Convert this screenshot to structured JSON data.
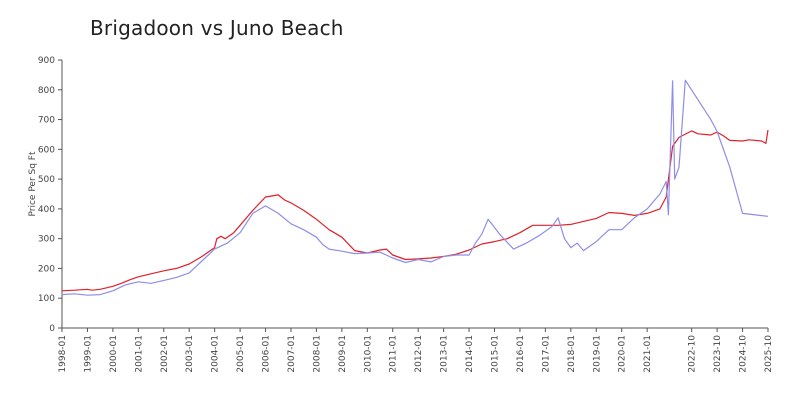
{
  "chart_data": {
    "type": "line",
    "title": "Brigadoon vs  Juno Beach",
    "ylabel": "Price Per Sq Ft",
    "xlabel": "",
    "ylim": [
      0,
      900
    ],
    "yticks": [
      0,
      100,
      200,
      300,
      400,
      500,
      600,
      700,
      800,
      900
    ],
    "xlim": [
      "1998-01",
      "2025-10"
    ],
    "xticks": [
      "1998-01",
      "1999-01",
      "2000-01",
      "2001-01",
      "2002-01",
      "2003-01",
      "2004-01",
      "2005-01",
      "2006-01",
      "2007-01",
      "2008-01",
      "2009-01",
      "2010-01",
      "2011-01",
      "2012-01",
      "2013-01",
      "2014-01",
      "2015-01",
      "2016-01",
      "2017-01",
      "2018-01",
      "2019-01",
      "2020-01",
      "2021-01",
      "2022-10",
      "2023-10",
      "2024-10",
      "2025-10"
    ],
    "legend": "none",
    "grid": false,
    "series": [
      {
        "color": "#e0212a",
        "points": [
          [
            "1998-01",
            125
          ],
          [
            "1998-07",
            127
          ],
          [
            "1999-01",
            130
          ],
          [
            "1999-03",
            127
          ],
          [
            "1999-07",
            130
          ],
          [
            "2000-01",
            140
          ],
          [
            "2000-05",
            150
          ],
          [
            "2000-09",
            162
          ],
          [
            "2001-01",
            172
          ],
          [
            "2001-07",
            182
          ],
          [
            "2002-01",
            192
          ],
          [
            "2002-07",
            200
          ],
          [
            "2003-01",
            215
          ],
          [
            "2003-07",
            240
          ],
          [
            "2004-01",
            270
          ],
          [
            "2004-02",
            300
          ],
          [
            "2004-04",
            308
          ],
          [
            "2004-06",
            300
          ],
          [
            "2004-10",
            320
          ],
          [
            "2005-01",
            345
          ],
          [
            "2005-07",
            395
          ],
          [
            "2006-01",
            440
          ],
          [
            "2006-07",
            447
          ],
          [
            "2006-10",
            430
          ],
          [
            "2007-01",
            420
          ],
          [
            "2007-07",
            395
          ],
          [
            "2008-01",
            365
          ],
          [
            "2008-07",
            330
          ],
          [
            "2009-01",
            305
          ],
          [
            "2009-07",
            260
          ],
          [
            "2010-01",
            252
          ],
          [
            "2010-07",
            262
          ],
          [
            "2010-10",
            265
          ],
          [
            "2011-01",
            245
          ],
          [
            "2011-07",
            230
          ],
          [
            "2012-01",
            232
          ],
          [
            "2012-07",
            235
          ],
          [
            "2013-01",
            240
          ],
          [
            "2013-07",
            248
          ],
          [
            "2014-01",
            262
          ],
          [
            "2014-07",
            282
          ],
          [
            "2015-01",
            290
          ],
          [
            "2015-07",
            300
          ],
          [
            "2016-01",
            320
          ],
          [
            "2016-07",
            345
          ],
          [
            "2017-01",
            345
          ],
          [
            "2017-07",
            345
          ],
          [
            "2018-01",
            348
          ],
          [
            "2018-07",
            358
          ],
          [
            "2019-01",
            368
          ],
          [
            "2019-07",
            388
          ],
          [
            "2020-01",
            385
          ],
          [
            "2020-07",
            378
          ],
          [
            "2021-01",
            385
          ],
          [
            "2021-07",
            400
          ],
          [
            "2021-10",
            440
          ],
          [
            "2022-01",
            610
          ],
          [
            "2022-04",
            640
          ],
          [
            "2022-10",
            662
          ],
          [
            "2023-01",
            652
          ],
          [
            "2023-07",
            648
          ],
          [
            "2023-10",
            658
          ],
          [
            "2024-01",
            645
          ],
          [
            "2024-04",
            630
          ],
          [
            "2024-10",
            628
          ],
          [
            "2025-01",
            632
          ],
          [
            "2025-07",
            628
          ],
          [
            "2025-09",
            620
          ],
          [
            "2025-10",
            665
          ]
        ]
      },
      {
        "color": "#8e8ee8",
        "points": [
          [
            "1998-01",
            112
          ],
          [
            "1998-07",
            115
          ],
          [
            "1999-01",
            110
          ],
          [
            "1999-07",
            112
          ],
          [
            "2000-01",
            125
          ],
          [
            "2000-07",
            145
          ],
          [
            "2001-01",
            155
          ],
          [
            "2001-07",
            150
          ],
          [
            "2002-01",
            160
          ],
          [
            "2002-07",
            170
          ],
          [
            "2003-01",
            185
          ],
          [
            "2003-07",
            225
          ],
          [
            "2004-01",
            265
          ],
          [
            "2004-07",
            285
          ],
          [
            "2005-01",
            320
          ],
          [
            "2005-07",
            385
          ],
          [
            "2006-01",
            410
          ],
          [
            "2006-07",
            385
          ],
          [
            "2007-01",
            350
          ],
          [
            "2007-07",
            330
          ],
          [
            "2008-01",
            305
          ],
          [
            "2008-04",
            280
          ],
          [
            "2008-07",
            265
          ],
          [
            "2009-01",
            258
          ],
          [
            "2009-07",
            250
          ],
          [
            "2010-01",
            252
          ],
          [
            "2010-07",
            255
          ],
          [
            "2011-01",
            235
          ],
          [
            "2011-07",
            220
          ],
          [
            "2012-01",
            230
          ],
          [
            "2012-07",
            222
          ],
          [
            "2013-01",
            240
          ],
          [
            "2013-07",
            245
          ],
          [
            "2014-01",
            245
          ],
          [
            "2014-04",
            285
          ],
          [
            "2014-07",
            315
          ],
          [
            "2014-10",
            365
          ],
          [
            "2015-04",
            310
          ],
          [
            "2015-10",
            265
          ],
          [
            "2016-04",
            285
          ],
          [
            "2016-10",
            310
          ],
          [
            "2017-04",
            340
          ],
          [
            "2017-07",
            370
          ],
          [
            "2017-10",
            300
          ],
          [
            "2018-01",
            270
          ],
          [
            "2018-04",
            285
          ],
          [
            "2018-07",
            260
          ],
          [
            "2019-01",
            290
          ],
          [
            "2019-07",
            330
          ],
          [
            "2020-01",
            330
          ],
          [
            "2020-07",
            370
          ],
          [
            "2021-01",
            400
          ],
          [
            "2021-07",
            450
          ],
          [
            "2021-10",
            492
          ],
          [
            "2021-11",
            380
          ],
          [
            "2022-01",
            830
          ],
          [
            "2022-02",
            500
          ],
          [
            "2022-04",
            540
          ],
          [
            "2022-07",
            832
          ],
          [
            "2023-07",
            700
          ],
          [
            "2023-10",
            660
          ],
          [
            "2024-04",
            540
          ],
          [
            "2024-10",
            385
          ],
          [
            "2025-10",
            375
          ]
        ]
      }
    ]
  }
}
